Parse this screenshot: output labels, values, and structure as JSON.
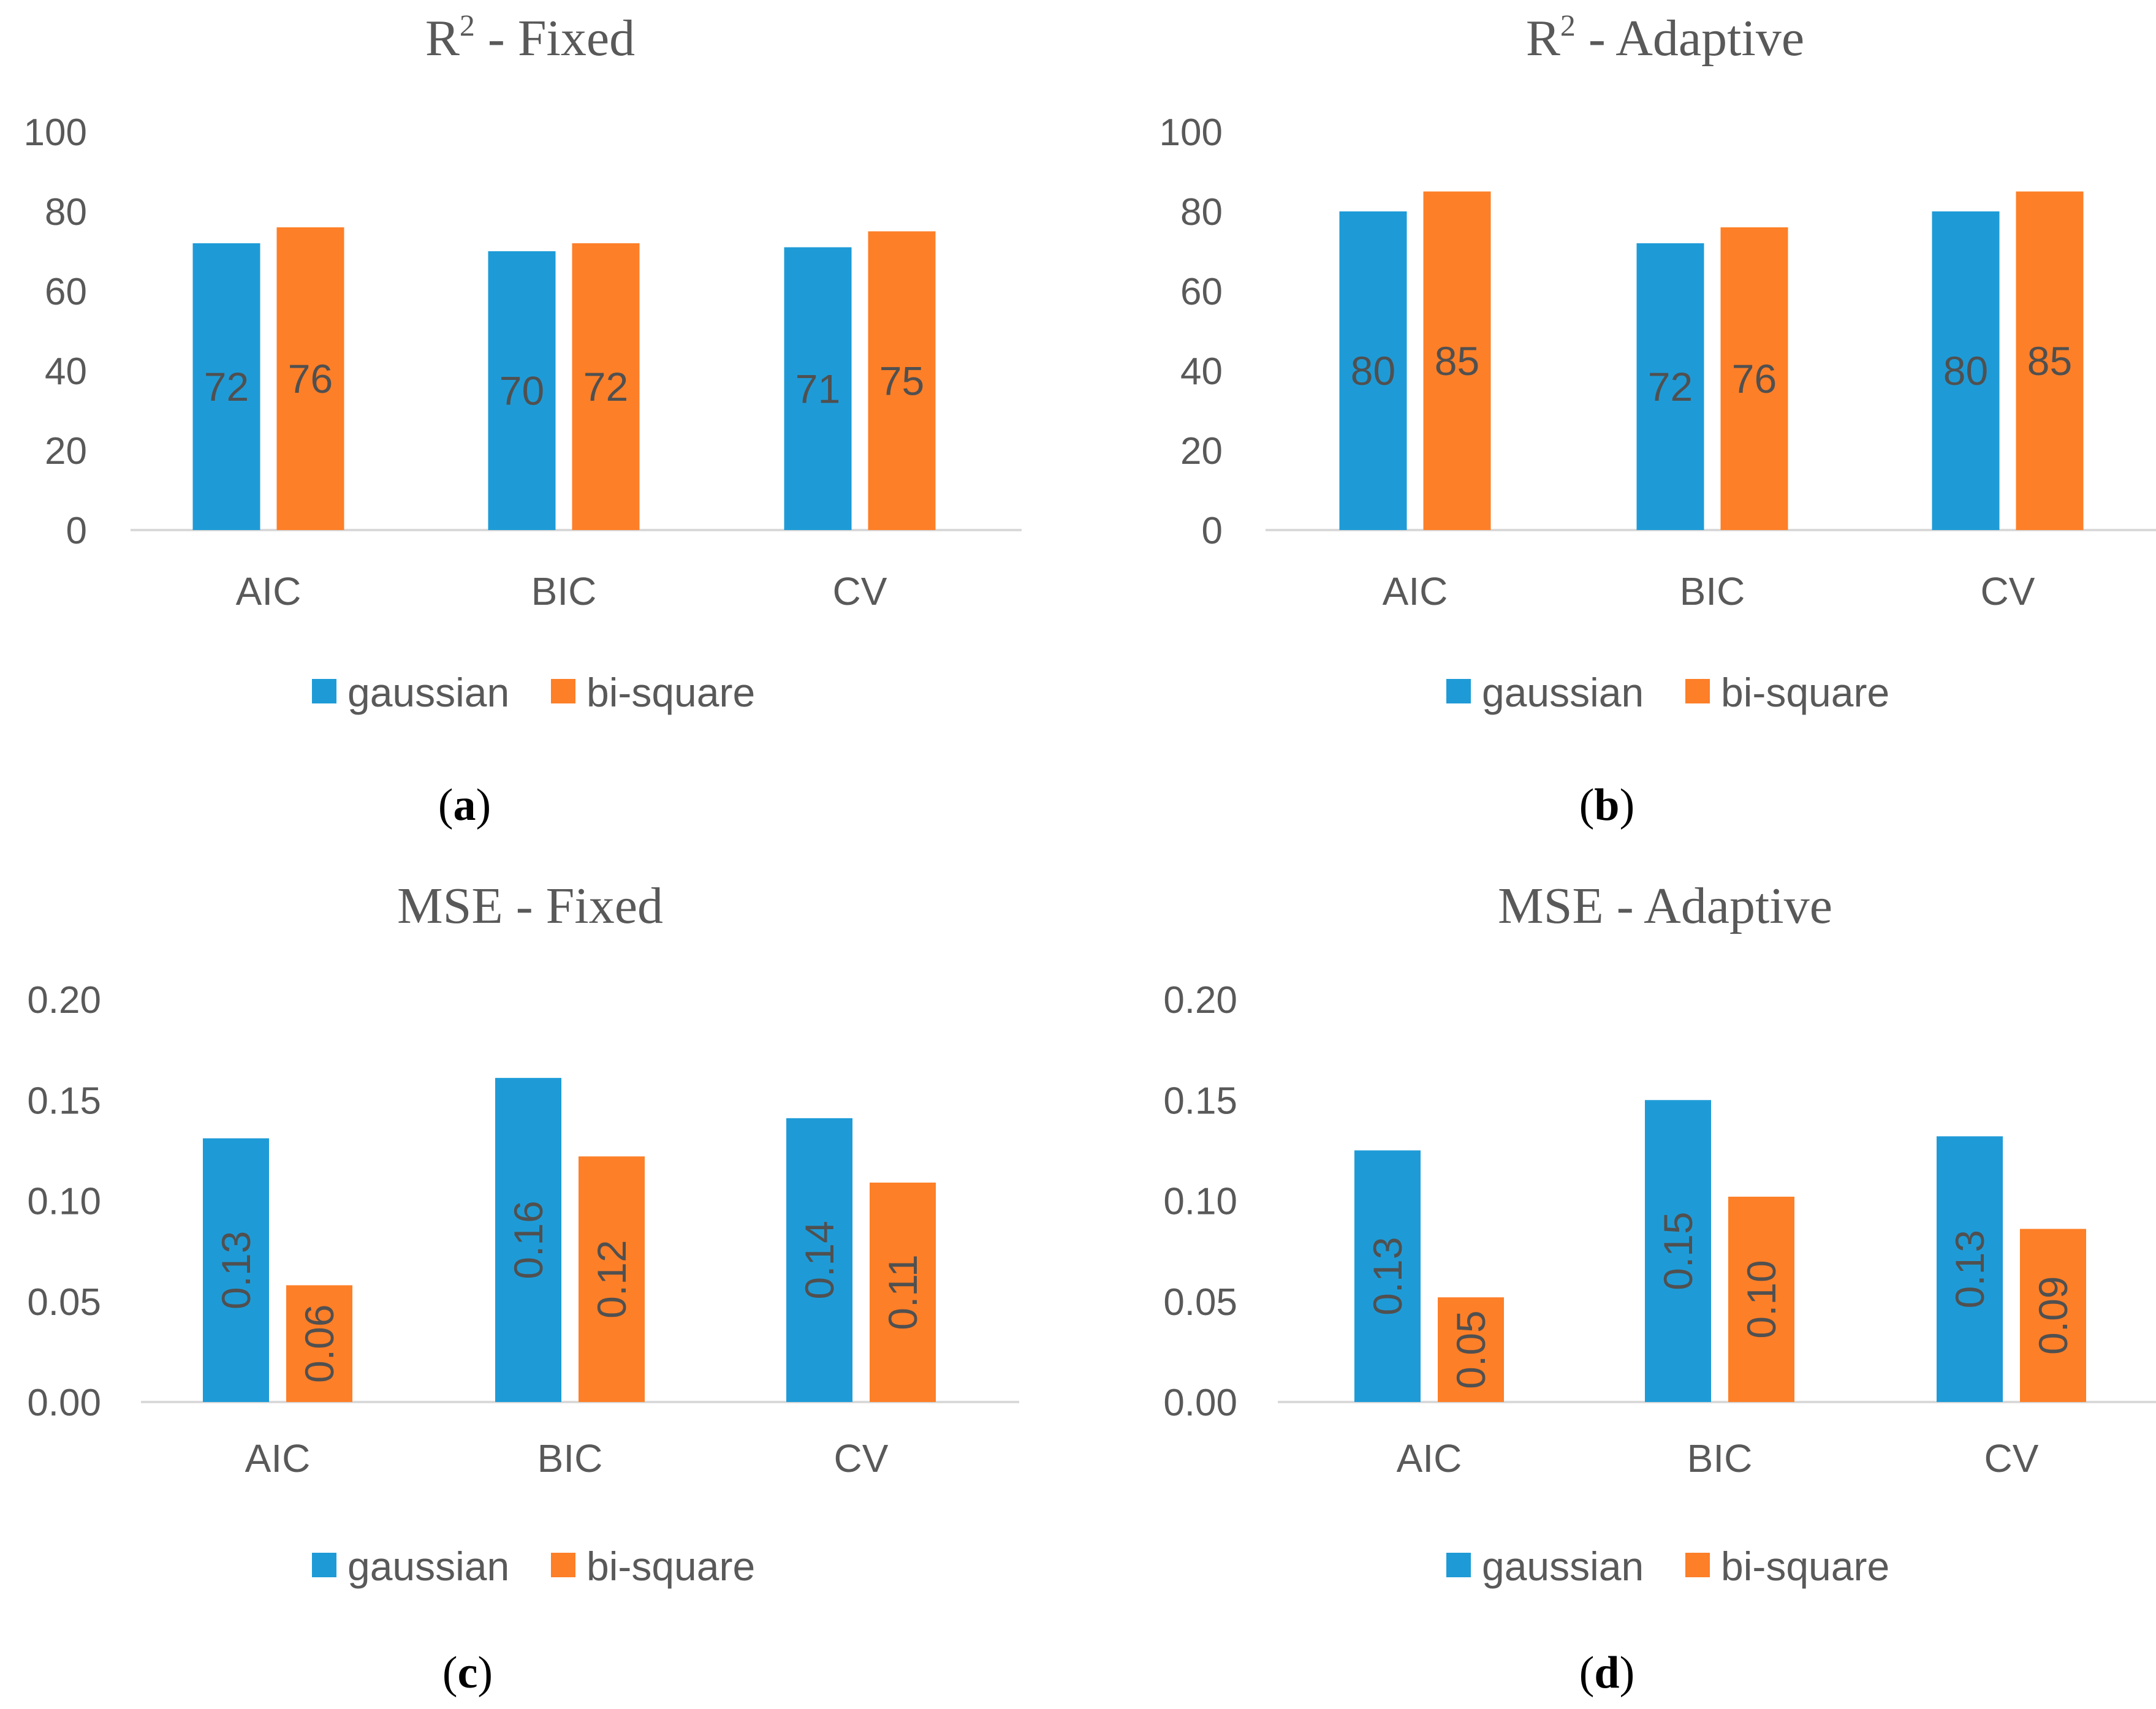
{
  "colors": {
    "gaussian": "#1E9BD7",
    "bisquare": "#FD7F28",
    "axis": "#D9D9D9",
    "text": "#595959"
  },
  "legend": {
    "gaussian": "gaussian",
    "bisquare": "bi-square"
  },
  "chart_data": [
    {
      "id": "a",
      "panel_label": "a",
      "type": "bar",
      "title": "R",
      "title_sup": "2",
      "title_rest": " - Fixed",
      "categories": [
        "AIC",
        "BIC",
        "CV"
      ],
      "ylim": [
        0,
        100
      ],
      "yticks": [
        "0",
        "20",
        "40",
        "60",
        "80",
        "100"
      ],
      "ytick_values": [
        0,
        20,
        40,
        60,
        80,
        100
      ],
      "label_rotation": 0,
      "series": [
        {
          "name": "gaussian",
          "values": [
            72,
            70,
            71
          ],
          "labels": [
            "72",
            "70",
            "71"
          ]
        },
        {
          "name": "bi-square",
          "values": [
            76,
            72,
            75
          ],
          "labels": [
            "76",
            "72",
            "75"
          ]
        }
      ]
    },
    {
      "id": "b",
      "panel_label": "b",
      "type": "bar",
      "title": "R",
      "title_sup": "2",
      "title_rest": " - Adaptive",
      "categories": [
        "AIC",
        "BIC",
        "CV"
      ],
      "ylim": [
        0,
        100
      ],
      "yticks": [
        "0",
        "20",
        "40",
        "60",
        "80",
        "100"
      ],
      "ytick_values": [
        0,
        20,
        40,
        60,
        80,
        100
      ],
      "label_rotation": 0,
      "series": [
        {
          "name": "gaussian",
          "values": [
            80,
            72,
            80
          ],
          "labels": [
            "80",
            "72",
            "80"
          ]
        },
        {
          "name": "bi-square",
          "values": [
            85,
            76,
            85
          ],
          "labels": [
            "85",
            "76",
            "85"
          ]
        }
      ]
    },
    {
      "id": "c",
      "panel_label": "c",
      "type": "bar",
      "title": "MSE - Fixed",
      "title_sup": "",
      "title_rest": "",
      "categories": [
        "AIC",
        "BIC",
        "CV"
      ],
      "ylim": [
        0,
        0.2
      ],
      "yticks": [
        "0.00",
        "0.05",
        "0.10",
        "0.15",
        "0.20"
      ],
      "ytick_values": [
        0,
        0.05,
        0.1,
        0.15,
        0.2
      ],
      "label_rotation": -90,
      "series": [
        {
          "name": "gaussian",
          "values": [
            0.131,
            0.161,
            0.141
          ],
          "labels": [
            "0.13",
            "0.16",
            "0.14"
          ]
        },
        {
          "name": "bi-square",
          "values": [
            0.058,
            0.122,
            0.109
          ],
          "labels": [
            "0.06",
            "0.12",
            "0.11"
          ]
        }
      ]
    },
    {
      "id": "d",
      "panel_label": "d",
      "type": "bar",
      "title": "MSE - Adaptive",
      "title_sup": "",
      "title_rest": "",
      "categories": [
        "AIC",
        "BIC",
        "CV"
      ],
      "ylim": [
        0,
        0.2
      ],
      "yticks": [
        "0.00",
        "0.05",
        "0.10",
        "0.15",
        "0.20"
      ],
      "ytick_values": [
        0,
        0.05,
        0.1,
        0.15,
        0.2
      ],
      "label_rotation": -90,
      "series": [
        {
          "name": "gaussian",
          "values": [
            0.125,
            0.15,
            0.132
          ],
          "labels": [
            "0.13",
            "0.15",
            "0.13"
          ]
        },
        {
          "name": "bi-square",
          "values": [
            0.052,
            0.102,
            0.086
          ],
          "labels": [
            "0.05",
            "0.10",
            "0.09"
          ]
        }
      ]
    }
  ]
}
